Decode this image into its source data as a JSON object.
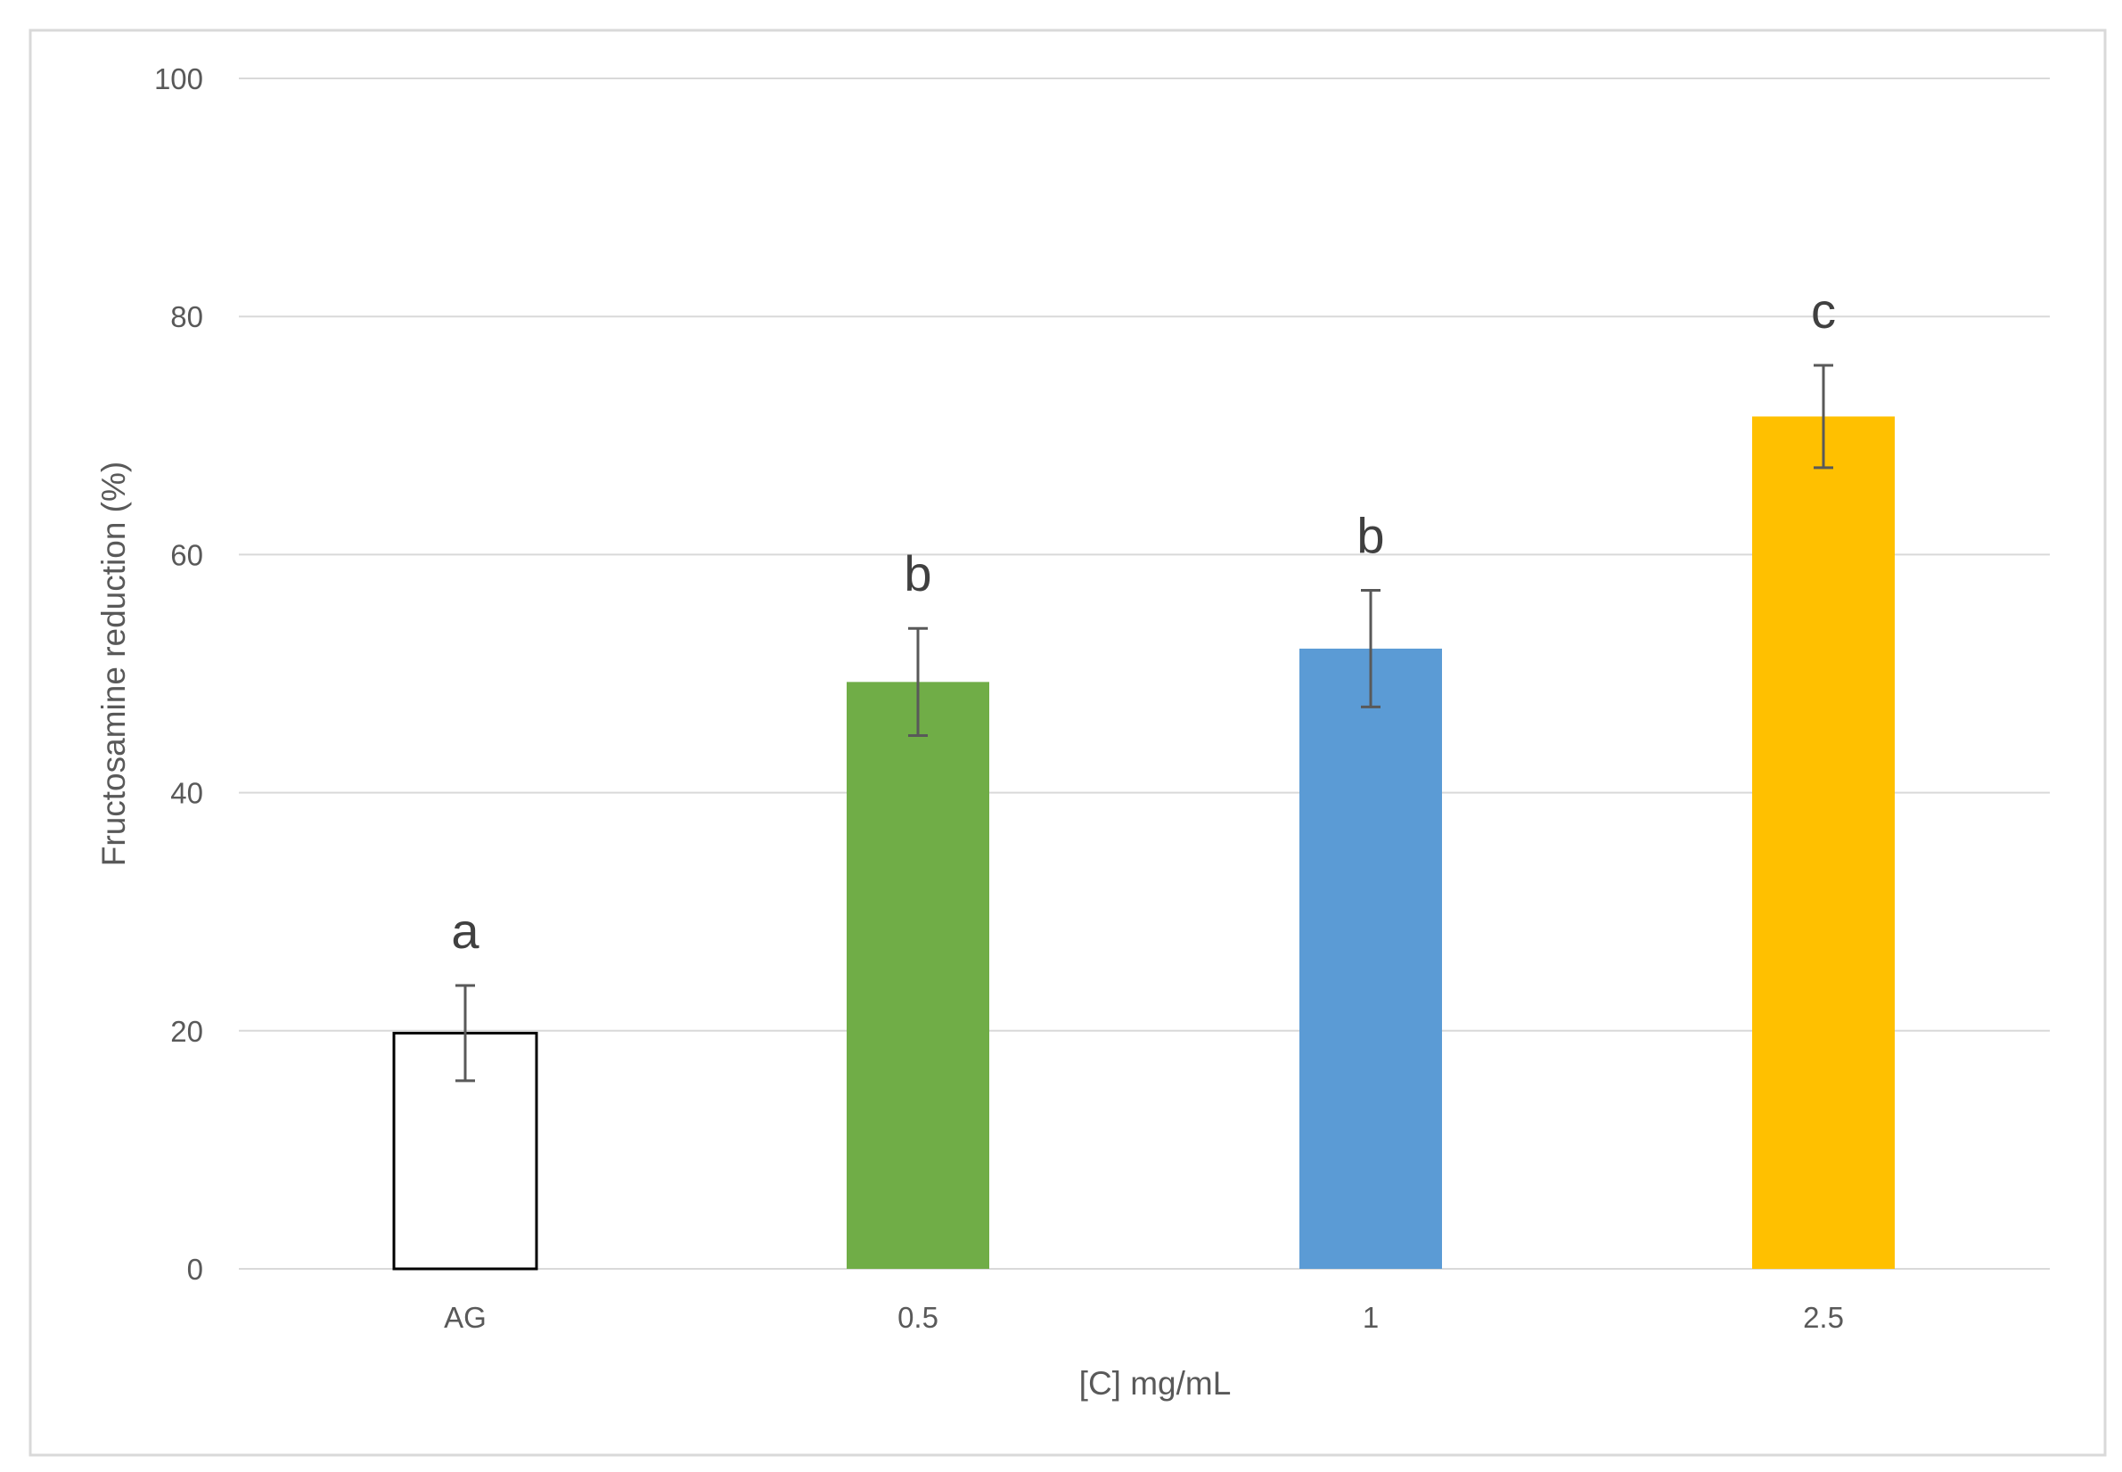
{
  "chart_data": {
    "type": "bar",
    "title": "",
    "xlabel": "[C] mg/mL",
    "ylabel": "Fructosamine reduction (%)",
    "categories": [
      "AG",
      "0.5",
      "1",
      "2.5"
    ],
    "values": [
      19.8,
      49.3,
      52.1,
      71.6
    ],
    "error": [
      4.0,
      4.5,
      4.9,
      4.3
    ],
    "significance_letters": [
      "a",
      "b",
      "b",
      "c"
    ],
    "bar_colors": [
      "#ffffff",
      "#70ad47",
      "#5b9bd5",
      "#ffc000"
    ],
    "bar_outline": [
      "#000000",
      "none",
      "none",
      "none"
    ],
    "ylim": [
      0,
      100
    ],
    "yticks": [
      0,
      20,
      40,
      60,
      80,
      100
    ],
    "grid": true,
    "legend": "none"
  }
}
